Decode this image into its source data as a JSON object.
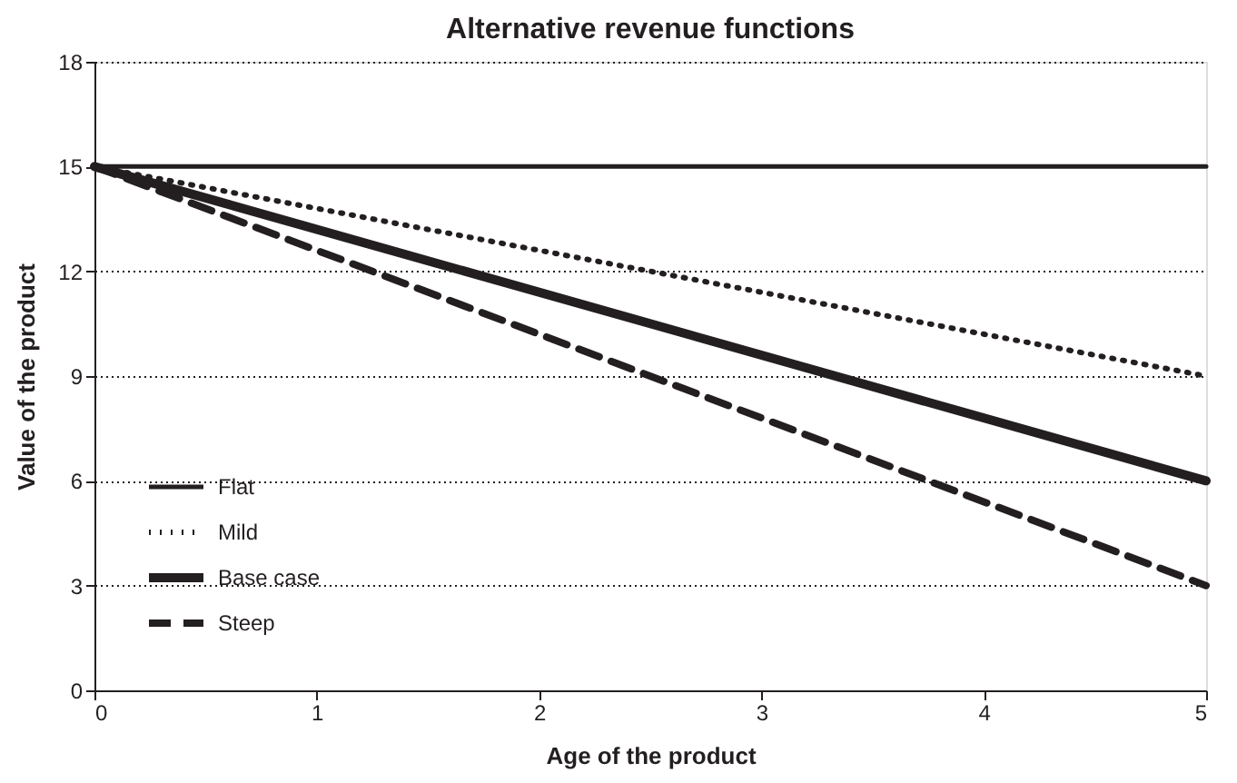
{
  "chart_data": {
    "type": "line",
    "title": "Alternative revenue functions",
    "xlabel": "Age of the product",
    "ylabel": "Value of the product",
    "x": [
      0,
      5
    ],
    "xlim": [
      0,
      5
    ],
    "xticks": [
      0,
      1,
      2,
      3,
      4,
      5
    ],
    "ylim": [
      0,
      18
    ],
    "yticks": [
      0,
      3,
      6,
      9,
      12,
      15,
      18
    ],
    "grid": "y",
    "legend": "bottom left",
    "marker": "none",
    "series": [
      {
        "name": "Flat",
        "color": "#231f20",
        "values": [
          15,
          15
        ],
        "line_style": "solid"
      },
      {
        "name": "Mild",
        "color": "#231f20",
        "values": [
          15,
          9
        ],
        "line_style": "dotted"
      },
      {
        "name": "Base case",
        "color": "#231f20",
        "values": [
          15,
          6
        ],
        "line_style": "solid"
      },
      {
        "name": "Steep",
        "color": "#231f20",
        "values": [
          15,
          3
        ],
        "line_style": "dashed"
      }
    ]
  }
}
